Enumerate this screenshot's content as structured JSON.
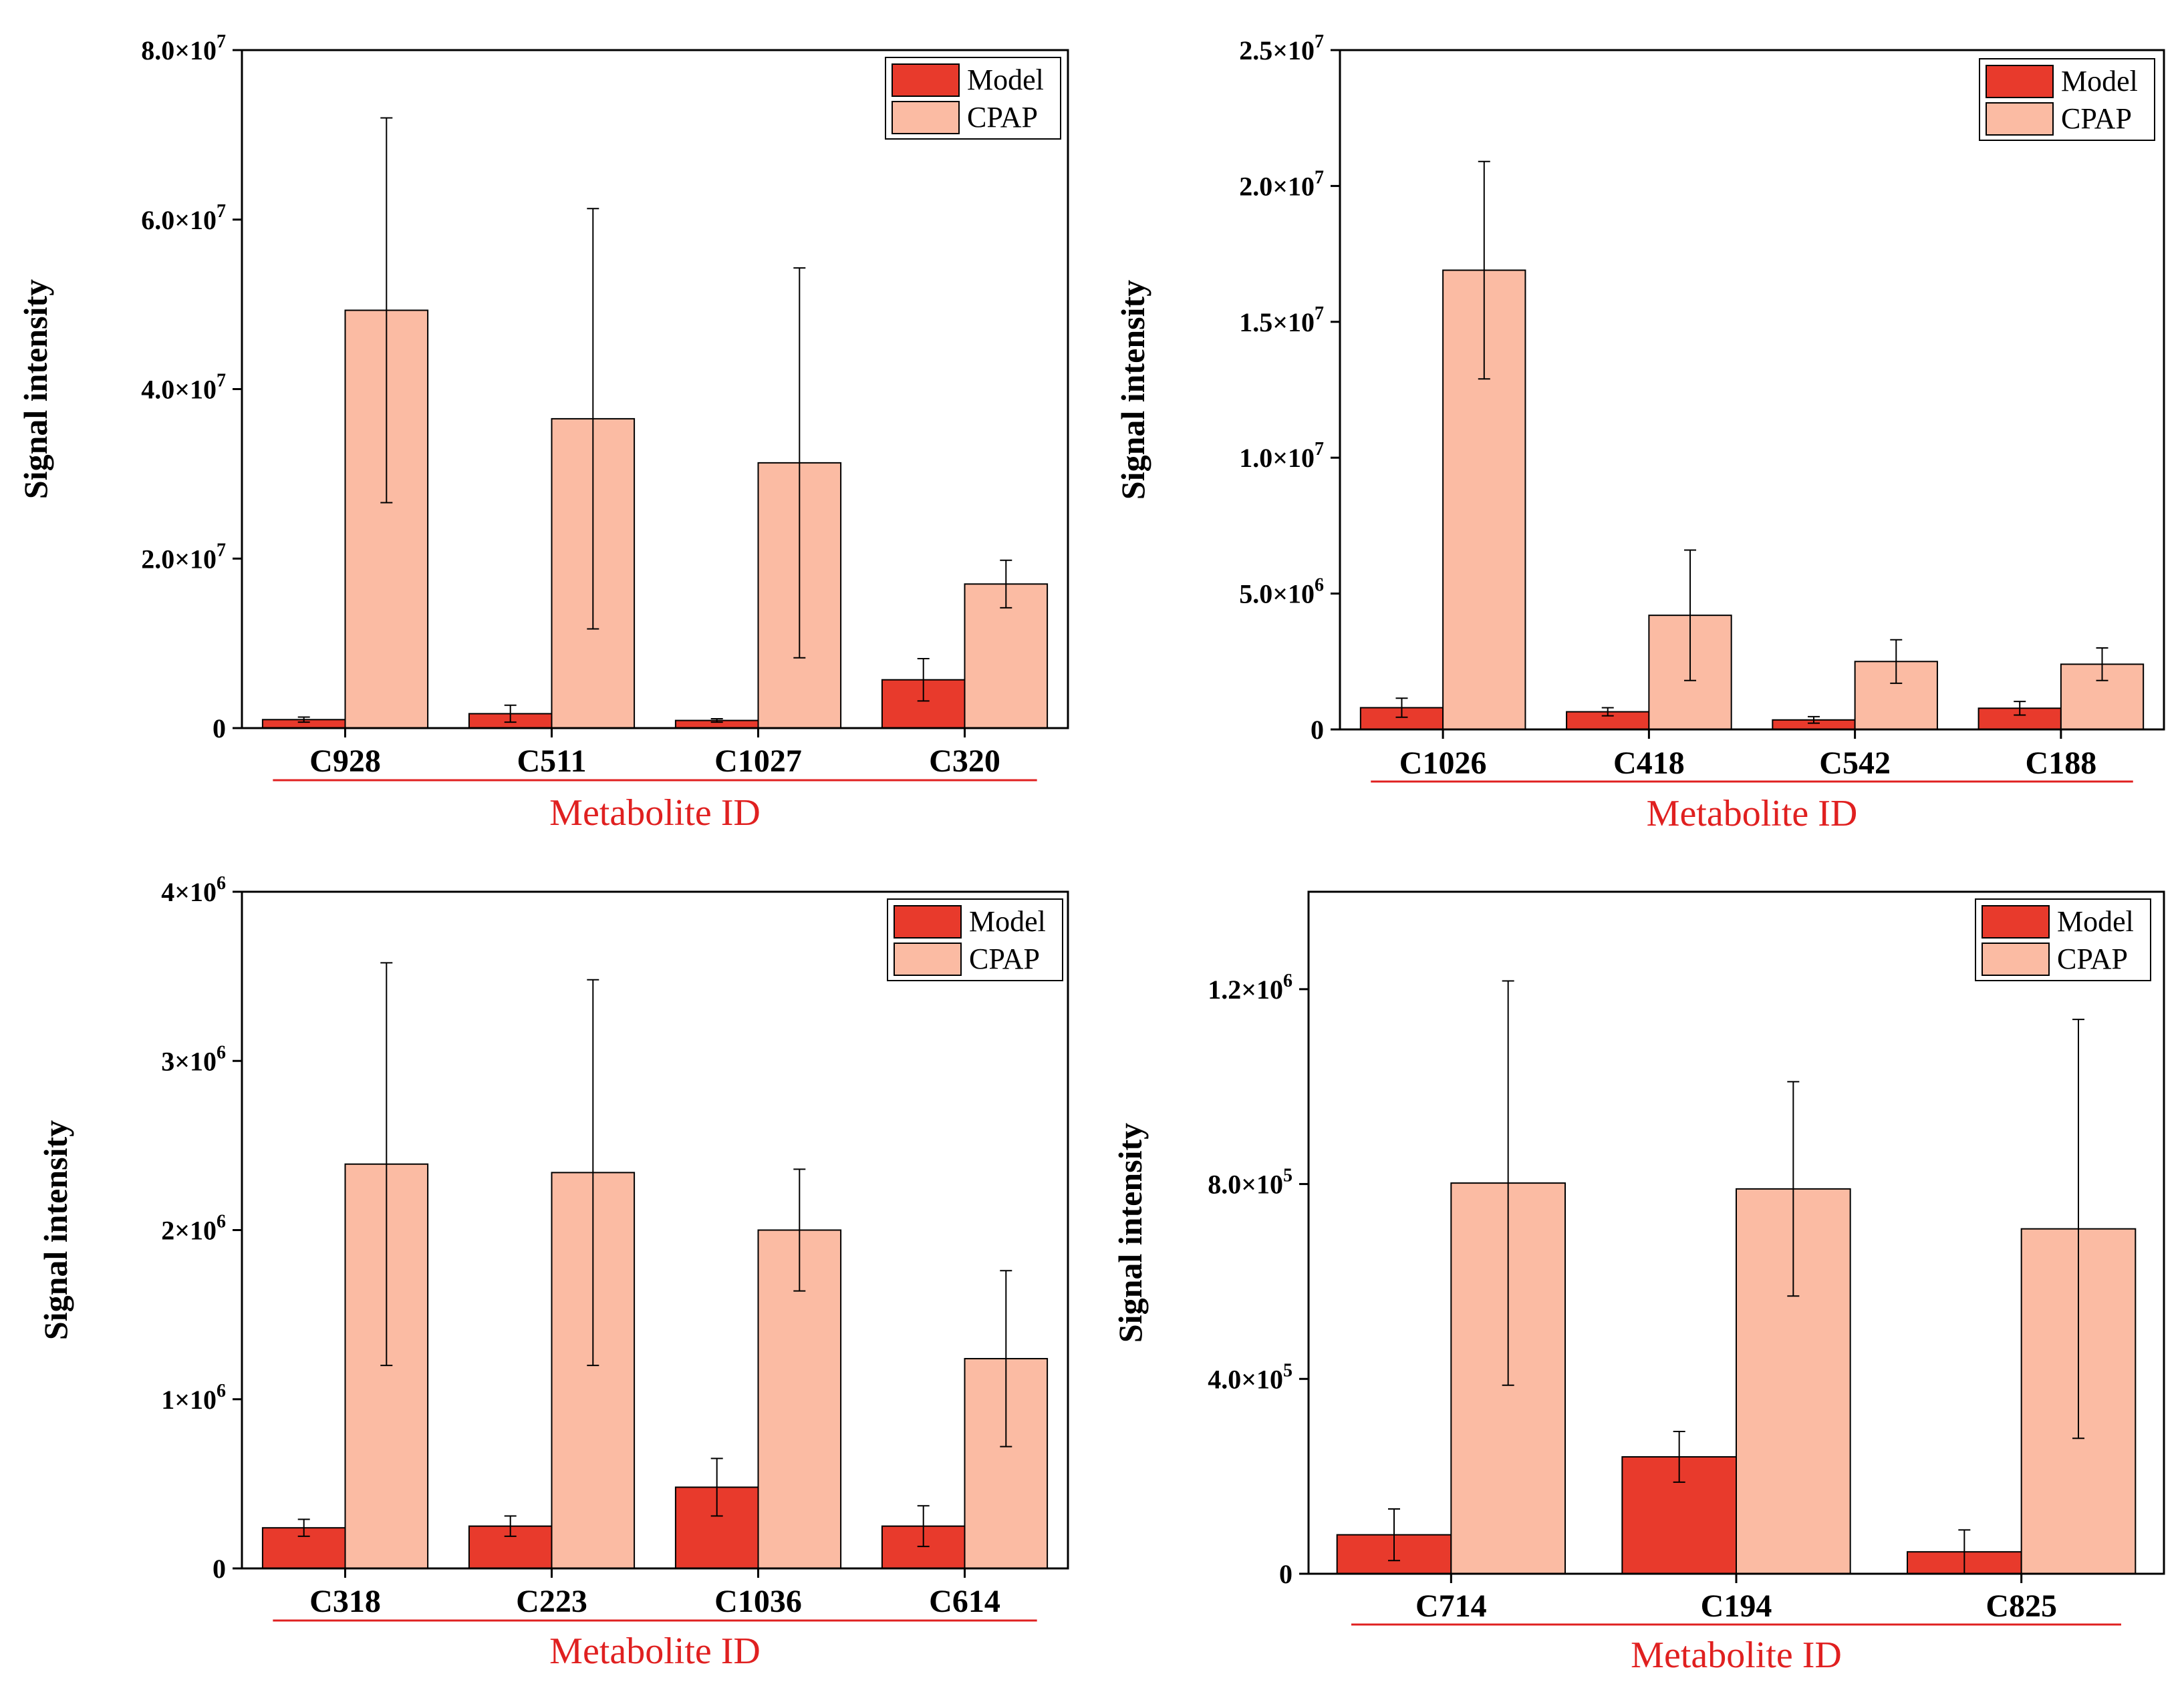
{
  "figure": {
    "colors": {
      "model": "#e83a2c",
      "cpap": "#fbbba3",
      "axis": "#000000",
      "xlabel": "#e02020"
    }
  },
  "chart_data": [
    {
      "type": "bar",
      "panel": "top-left",
      "categories": [
        "C928",
        "C511",
        "C1027",
        "C320"
      ],
      "series": [
        {
          "name": "Model",
          "values": [
            1000000.0,
            1700000.0,
            900000.0,
            5700000.0
          ],
          "errors": [
            300000.0,
            1000000.0,
            200000.0,
            2500000.0
          ]
        },
        {
          "name": "CPAP",
          "values": [
            49300000.0,
            36500000.0,
            31300000.0,
            17000000.0
          ],
          "errors": [
            22700000.0,
            24800000.0,
            23000000.0,
            2800000.0
          ]
        }
      ],
      "ylim": [
        0,
        80000000.0
      ],
      "yticks": [
        0,
        20000000.0,
        40000000.0,
        60000000.0,
        80000000.0
      ],
      "ytick_labels": [
        {
          "mant": "0",
          "exp": ""
        },
        {
          "mant": "2.0×10",
          "exp": "7"
        },
        {
          "mant": "4.0×10",
          "exp": "7"
        },
        {
          "mant": "6.0×10",
          "exp": "7"
        },
        {
          "mant": "8.0×10",
          "exp": "7"
        }
      ],
      "ylabel": "Signal intensity",
      "xlabel": "Metabolite  ID",
      "legend": [
        "Model",
        "CPAP"
      ],
      "legend_position": "top-right"
    },
    {
      "type": "bar",
      "panel": "top-right",
      "categories": [
        "C1026",
        "C418",
        "C542",
        "C188"
      ],
      "series": [
        {
          "name": "Model",
          "values": [
            800000.0,
            650000.0,
            350000.0,
            780000.0
          ],
          "errors": [
            350000.0,
            150000.0,
            120000.0,
            250000.0
          ]
        },
        {
          "name": "CPAP",
          "values": [
            16900000.0,
            4200000.0,
            2500000.0,
            2400000.0
          ],
          "errors": [
            4000000.0,
            2400000.0,
            800000.0,
            600000.0
          ]
        }
      ],
      "ylim": [
        0,
        25000000.0
      ],
      "yticks": [
        0,
        5000000.0,
        10000000.0,
        15000000.0,
        20000000.0,
        25000000.0
      ],
      "ytick_labels": [
        {
          "mant": "0",
          "exp": ""
        },
        {
          "mant": "5.0×10",
          "exp": "6"
        },
        {
          "mant": "1.0×10",
          "exp": "7"
        },
        {
          "mant": "1.5×10",
          "exp": "7"
        },
        {
          "mant": "2.0×10",
          "exp": "7"
        },
        {
          "mant": "2.5×10",
          "exp": "7"
        }
      ],
      "ylabel": "Signal intensity",
      "xlabel": "Metabolite  ID",
      "legend": [
        "Model",
        "CPAP"
      ],
      "legend_position": "top-right"
    },
    {
      "type": "bar",
      "panel": "bottom-left",
      "categories": [
        "C318",
        "C223",
        "C1036",
        "C614"
      ],
      "series": [
        {
          "name": "Model",
          "values": [
            240000.0,
            250000.0,
            480000.0,
            250000.0
          ],
          "errors": [
            50000.0,
            60000.0,
            170000.0,
            120000.0
          ]
        },
        {
          "name": "CPAP",
          "values": [
            2390000.0,
            2340000.0,
            2000000.0,
            1240000.0
          ],
          "errors": [
            1190000.0,
            1140000.0,
            360000.0,
            520000.0
          ]
        }
      ],
      "ylim": [
        0,
        4000000.0
      ],
      "yticks": [
        0,
        1000000.0,
        2000000.0,
        3000000.0,
        4000000.0
      ],
      "ytick_labels": [
        {
          "mant": "0",
          "exp": ""
        },
        {
          "mant": "1×10",
          "exp": "6"
        },
        {
          "mant": "2×10",
          "exp": "6"
        },
        {
          "mant": "3×10",
          "exp": "6"
        },
        {
          "mant": "4×10",
          "exp": "6"
        }
      ],
      "ylabel": "Signal intensity",
      "xlabel": "Metabolite  ID",
      "legend": [
        "Model",
        "CPAP"
      ],
      "legend_position": "top-right"
    },
    {
      "type": "bar",
      "panel": "bottom-right",
      "categories": [
        "C714",
        "C194",
        "C825"
      ],
      "series": [
        {
          "name": "Model",
          "values": [
            80000.0,
            240000.0,
            45000.0
          ],
          "errors": [
            53000.0,
            52000.0,
            45000.0
          ]
        },
        {
          "name": "CPAP",
          "values": [
            802000.0,
            790000.0,
            708000.0
          ],
          "errors": [
            415000.0,
            220000.0,
            430000.0
          ]
        }
      ],
      "ylim": [
        0,
        1400000.0
      ],
      "yticks": [
        0,
        400000.0,
        800000.0,
        1200000.0
      ],
      "ytick_labels": [
        {
          "mant": "0",
          "exp": ""
        },
        {
          "mant": "4.0×10",
          "exp": "5"
        },
        {
          "mant": "8.0×10",
          "exp": "5"
        },
        {
          "mant": "1.2×10",
          "exp": "6"
        }
      ],
      "ylabel": "Signal intensity",
      "xlabel": "Metabolite  ID",
      "legend": [
        "Model",
        "CPAP"
      ],
      "legend_position": "top-right"
    }
  ]
}
